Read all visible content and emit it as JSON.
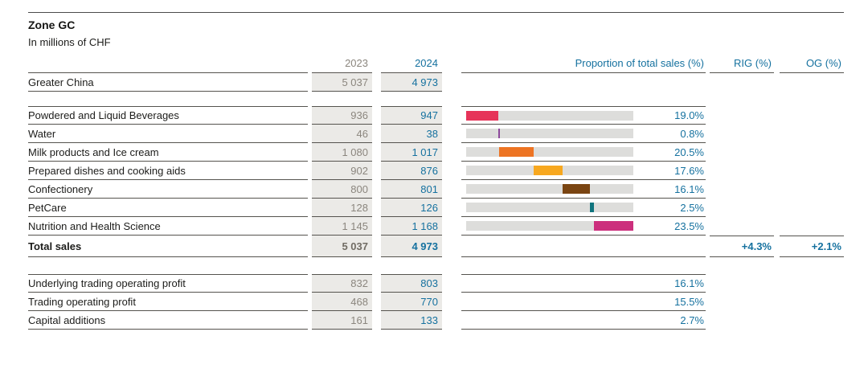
{
  "title": "Zone GC",
  "subtitle": "In millions of CHF",
  "columns": {
    "y2023": "2023",
    "y2024": "2024",
    "proportion": "Proportion of total sales (%)",
    "rig": "RIG (%)",
    "og": "OG (%)"
  },
  "region_row": {
    "label": "Greater China",
    "y2023": "5 037",
    "y2024": "4 973"
  },
  "category_rows": [
    {
      "label": "Powdered and Liquid Beverages",
      "y2023": "936",
      "y2024": "947",
      "proportion": "19.0%",
      "proportion_value": 19.0,
      "bar_color": "#e63459"
    },
    {
      "label": "Water",
      "y2023": "46",
      "y2024": "38",
      "proportion": "0.8%",
      "proportion_value": 0.8,
      "bar_color": "#8d4a9c"
    },
    {
      "label": "Milk products and Ice cream",
      "y2023": "1 080",
      "y2024": "1 017",
      "proportion": "20.5%",
      "proportion_value": 20.5,
      "bar_color": "#ed7423"
    },
    {
      "label": "Prepared dishes and cooking aids",
      "y2023": "902",
      "y2024": "876",
      "proportion": "17.6%",
      "proportion_value": 17.6,
      "bar_color": "#f7a81f"
    },
    {
      "label": "Confectionery",
      "y2023": "800",
      "y2024": "801",
      "proportion": "16.1%",
      "proportion_value": 16.1,
      "bar_color": "#7a4512"
    },
    {
      "label": "PetCare",
      "y2023": "128",
      "y2024": "126",
      "proportion": "2.5%",
      "proportion_value": 2.5,
      "bar_color": "#10747e"
    },
    {
      "label": "Nutrition and Health Science",
      "y2023": "1 145",
      "y2024": "1 168",
      "proportion": "23.5%",
      "proportion_value": 23.5,
      "bar_color": "#cc2f7d"
    }
  ],
  "total_row": {
    "label": "Total sales",
    "y2023": "5 037",
    "y2024": "4 973",
    "rig": "+4.3%",
    "og": "+2.1%"
  },
  "profit_rows": [
    {
      "label": "Underlying trading operating profit",
      "y2023": "832",
      "y2024": "803",
      "proportion": "16.1%"
    },
    {
      "label": "Trading operating profit",
      "y2023": "468",
      "y2024": "770",
      "proportion": "15.5%"
    },
    {
      "label": "Capital additions",
      "y2023": "161",
      "y2024": "133",
      "proportion": "2.7%"
    }
  ],
  "colors": {
    "accent_blue": "#15719f",
    "gray_text": "#8b867e",
    "label_text": "#1c1c1a",
    "line": "#55534e",
    "cell_shade": "#ebeae7",
    "bar_track": "#dddddb"
  },
  "chart_data": {
    "type": "bar",
    "title": "Proportion of total sales (%)",
    "categories": [
      "Powdered and Liquid Beverages",
      "Water",
      "Milk products and Ice cream",
      "Prepared dishes and cooking aids",
      "Confectionery",
      "PetCare",
      "Nutrition and Health Science"
    ],
    "values": [
      19.0,
      0.8,
      20.5,
      17.6,
      16.1,
      2.5,
      23.5
    ],
    "xlim": [
      0,
      100
    ],
    "layout": "each row shows a 0-100% gray track; the colored segment starts at the cumulative sum of previous categories (stacked-offset style)",
    "series_colors": [
      "#e63459",
      "#8d4a9c",
      "#ed7423",
      "#f7a81f",
      "#7a4512",
      "#10747e",
      "#cc2f7d"
    ]
  }
}
